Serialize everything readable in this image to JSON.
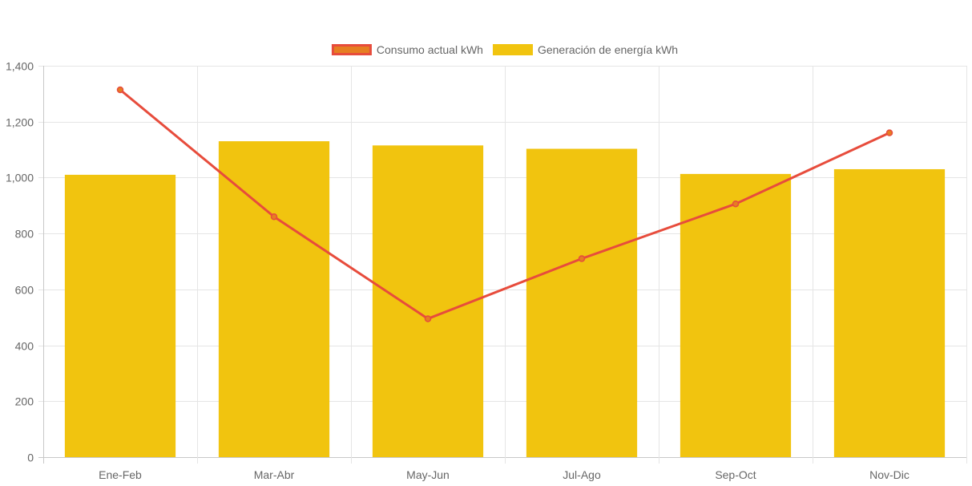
{
  "chart_data": {
    "type": "bar",
    "categories": [
      "Ene-Feb",
      "Mar-Abr",
      "May-Jun",
      "Jul-Ago",
      "Sep-Oct",
      "Nov-Dic"
    ],
    "series": [
      {
        "name": "Consumo actual kWh",
        "type": "line",
        "values": [
          1314,
          860,
          495,
          710,
          906,
          1160
        ],
        "color": "#e74c3c",
        "legend_fill": "#e67e22"
      },
      {
        "name": "Generación de energía kWh",
        "type": "bar",
        "values": [
          1010,
          1130,
          1115,
          1103,
          1013,
          1030
        ],
        "color": "#f1c40f"
      }
    ],
    "ylim": [
      0,
      1400
    ],
    "yticks": [
      0,
      200,
      400,
      600,
      800,
      1000,
      1200,
      1400
    ],
    "ytick_labels": [
      "0",
      "200",
      "400",
      "600",
      "800",
      "1,000",
      "1,200",
      "1,400"
    ],
    "grid": true,
    "legend_position": "top-center",
    "title": "",
    "xlabel": "",
    "ylabel": ""
  }
}
